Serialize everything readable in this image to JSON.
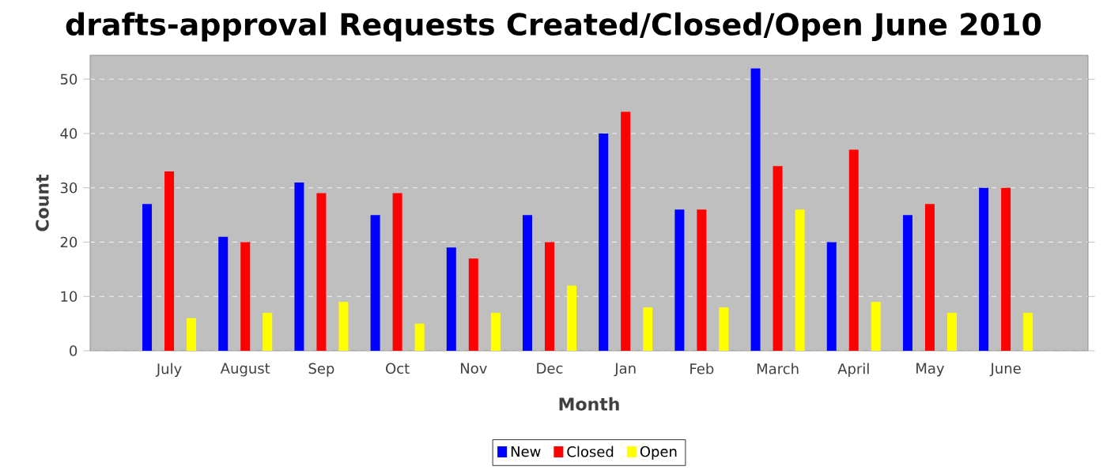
{
  "chart_data": {
    "type": "bar",
    "title": "drafts-approval Requests Created/Closed/Open June 2010",
    "xlabel": "Month",
    "ylabel": "Count",
    "categories": [
      "July",
      "August",
      "Sep",
      "Oct",
      "Nov",
      "Dec",
      "Jan",
      "Feb",
      "March",
      "April",
      "May",
      "June"
    ],
    "series": [
      {
        "name": "New",
        "color": "#0000ff",
        "values": [
          27,
          21,
          31,
          25,
          19,
          25,
          40,
          26,
          52,
          20,
          25,
          30
        ]
      },
      {
        "name": "Closed",
        "color": "#ff0000",
        "values": [
          33,
          20,
          29,
          29,
          17,
          20,
          44,
          26,
          34,
          37,
          27,
          30
        ]
      },
      {
        "name": "Open",
        "color": "#ffff00",
        "values": [
          6,
          7,
          9,
          5,
          7,
          12,
          8,
          8,
          26,
          9,
          7,
          7
        ]
      }
    ],
    "ylim": [
      0,
      54.4
    ],
    "yticks": [
      0,
      10,
      20,
      30,
      40,
      50
    ],
    "grid": "y",
    "legend": "bottom"
  }
}
